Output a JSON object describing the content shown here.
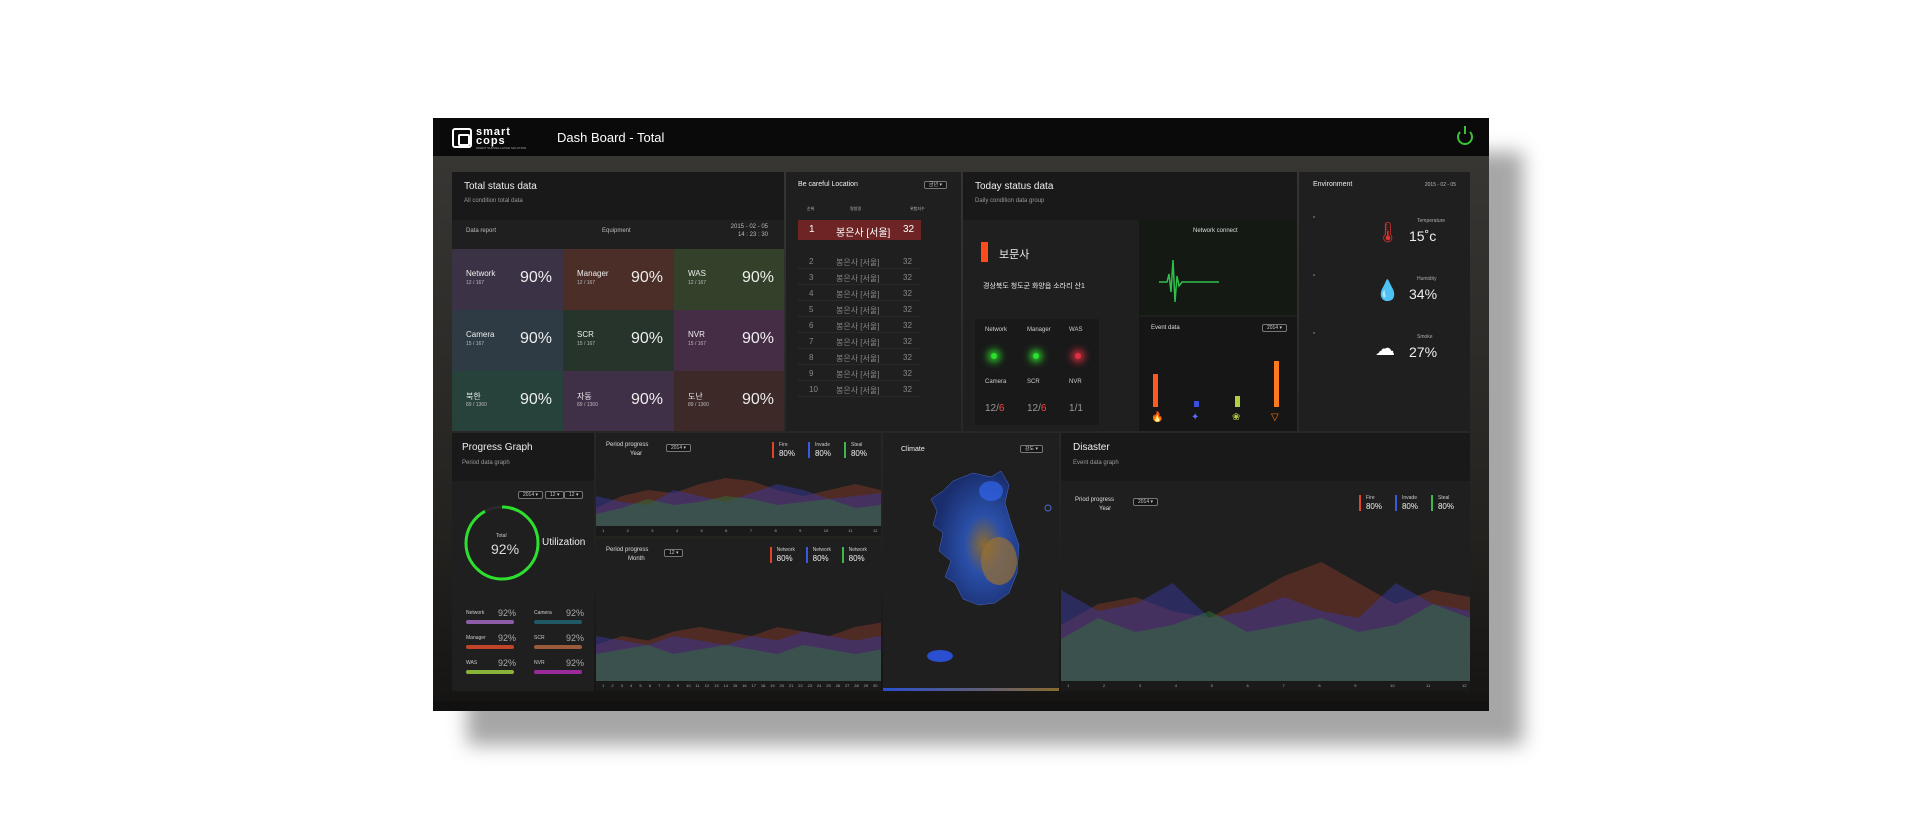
{
  "header": {
    "logo_line1": "smart",
    "logo_line2": "cops",
    "logo_tagline": "SMART SURVEILLANCE SOLUTION",
    "title": "Dash Board - Total"
  },
  "total_status": {
    "title": "Total status data",
    "subtitle": "All condition total data",
    "tab_report": "Data report",
    "tab_equipment": "Equipment",
    "date": "2015 - 02 - 05",
    "time": "14 : 23 : 30",
    "cells": [
      {
        "name": "Network",
        "count": "12 / 167",
        "value": "90%",
        "color": "#3c3245"
      },
      {
        "name": "Manager",
        "count": "12 / 167",
        "value": "90%",
        "color": "#4a2e27"
      },
      {
        "name": "WAS",
        "count": "12 / 167",
        "value": "90%",
        "color": "#33402a"
      },
      {
        "name": "Camera",
        "count": "15 / 167",
        "value": "90%",
        "color": "#2e3a44"
      },
      {
        "name": "SCR",
        "count": "15 / 167",
        "value": "90%",
        "color": "#26342b"
      },
      {
        "name": "NVR",
        "count": "15 / 167",
        "value": "90%",
        "color": "#452d46"
      },
      {
        "name": "북한",
        "count": "89 / 1360",
        "value": "90%",
        "color": "#27423a"
      },
      {
        "name": "자동",
        "count": "89 / 1360",
        "value": "90%",
        "color": "#3f2f47"
      },
      {
        "name": "도난",
        "count": "89 / 1360",
        "value": "90%",
        "color": "#3c2928"
      }
    ]
  },
  "location": {
    "title": "Be careful Location",
    "dropdown": "금년",
    "col_rank": "순위",
    "col_name": "명칭명",
    "col_count": "위험지수",
    "rows": [
      {
        "rank": "1",
        "name": "봉은사 [서울]",
        "count": "32"
      },
      {
        "rank": "2",
        "name": "봉은사 [서울]",
        "count": "32"
      },
      {
        "rank": "3",
        "name": "봉은사 [서울]",
        "count": "32"
      },
      {
        "rank": "4",
        "name": "봉은사 [서울]",
        "count": "32"
      },
      {
        "rank": "5",
        "name": "봉은사 [서울]",
        "count": "32"
      },
      {
        "rank": "6",
        "name": "봉은사 [서울]",
        "count": "32"
      },
      {
        "rank": "7",
        "name": "봉은사 [서울]",
        "count": "32"
      },
      {
        "rank": "8",
        "name": "봉은사 [서울]",
        "count": "32"
      },
      {
        "rank": "9",
        "name": "봉은사 [서울]",
        "count": "32"
      },
      {
        "rank": "10",
        "name": "봉은사 [서울]",
        "count": "32"
      }
    ]
  },
  "today": {
    "title": "Today status data",
    "subtitle": "Daily condition data group",
    "site_name": "보문사",
    "address": "경상북도 청도군 화양읍 소라리 산1",
    "lights": [
      "Network",
      "Manager",
      "WAS"
    ],
    "light_colors": [
      "#2ee02e",
      "#2ee02e",
      "#e03040"
    ],
    "counts": [
      {
        "label": "Camera",
        "a": "12",
        "b": "6"
      },
      {
        "label": "SCR",
        "a": "12",
        "b": "6"
      },
      {
        "label": "NVR",
        "a": "1",
        "b": "1"
      }
    ],
    "network_title": "Network connect",
    "event_title": "Event data",
    "event_dropdown": "2014"
  },
  "environment": {
    "title": "Environment",
    "date": "2015 - 02 - 05",
    "items": [
      {
        "label": "Temperature",
        "value": "15˚c",
        "icon": "thermometer-icon"
      },
      {
        "label": "Humidity",
        "value": "34%",
        "icon": "water-drop-icon"
      },
      {
        "label": "Smoke",
        "value": "27%",
        "icon": "cloud-icon"
      }
    ]
  },
  "progress": {
    "title": "Progress Graph",
    "subtitle": "Period data graph",
    "dropdowns": [
      "2014",
      "12",
      "12"
    ],
    "total_label": "Total",
    "total_value": "92%",
    "utilization": "Utilization",
    "utilization_fraction": 0.92,
    "bars": [
      {
        "label": "Network",
        "value": "92%",
        "color": "#8e5ba8"
      },
      {
        "label": "Camera",
        "value": "92%",
        "color": "#1f5a66"
      },
      {
        "label": "Manager",
        "value": "92%",
        "color": "#c0432a"
      },
      {
        "label": "SCR",
        "value": "92%",
        "color": "#9a5b3a"
      },
      {
        "label": "WAS",
        "value": "92%",
        "color": "#88b43a"
      },
      {
        "label": "NVR",
        "value": "92%",
        "color": "#9b2a9b"
      }
    ]
  },
  "period_year": {
    "title": "Period progress",
    "unit": "Year",
    "dropdown": "2014",
    "legend": [
      {
        "label": "Fire",
        "value": "80%",
        "color": "#e0452a"
      },
      {
        "label": "Invade",
        "value": "80%",
        "color": "#3a58e0"
      },
      {
        "label": "Steal",
        "value": "80%",
        "color": "#3fb74a"
      }
    ],
    "x": [
      "1",
      "2",
      "3",
      "4",
      "5",
      "6",
      "7",
      "8",
      "9",
      "10",
      "11",
      "12"
    ]
  },
  "period_month": {
    "title": "Period progress",
    "unit": "Month",
    "dropdown": "12",
    "legend": [
      {
        "label": "Network",
        "value": "80%",
        "color": "#e0452a"
      },
      {
        "label": "Network",
        "value": "80%",
        "color": "#3a58e0"
      },
      {
        "label": "Network",
        "value": "80%",
        "color": "#3fb74a"
      }
    ],
    "x": [
      "1",
      "2",
      "3",
      "4",
      "5",
      "6",
      "7",
      "8",
      "9",
      "10",
      "11",
      "12",
      "13",
      "14",
      "15",
      "16",
      "17",
      "18",
      "19",
      "20",
      "21",
      "22",
      "23",
      "24",
      "25",
      "26",
      "27",
      "28",
      "29",
      "30"
    ]
  },
  "climate": {
    "title": "Climate",
    "dropdown": "강도"
  },
  "disaster": {
    "title": "Disaster",
    "subtitle": "Event data graph",
    "chart_title": "Priod progress",
    "unit": "Year",
    "dropdown": "2014",
    "legend": [
      {
        "label": "Fire",
        "value": "80%",
        "color": "#e0452a"
      },
      {
        "label": "Invade",
        "value": "80%",
        "color": "#3a58e0"
      },
      {
        "label": "Steal",
        "value": "80%",
        "color": "#3fb74a"
      }
    ],
    "x": [
      "1",
      "2",
      "3",
      "4",
      "5",
      "6",
      "7",
      "8",
      "9",
      "10",
      "11",
      "12"
    ]
  }
}
